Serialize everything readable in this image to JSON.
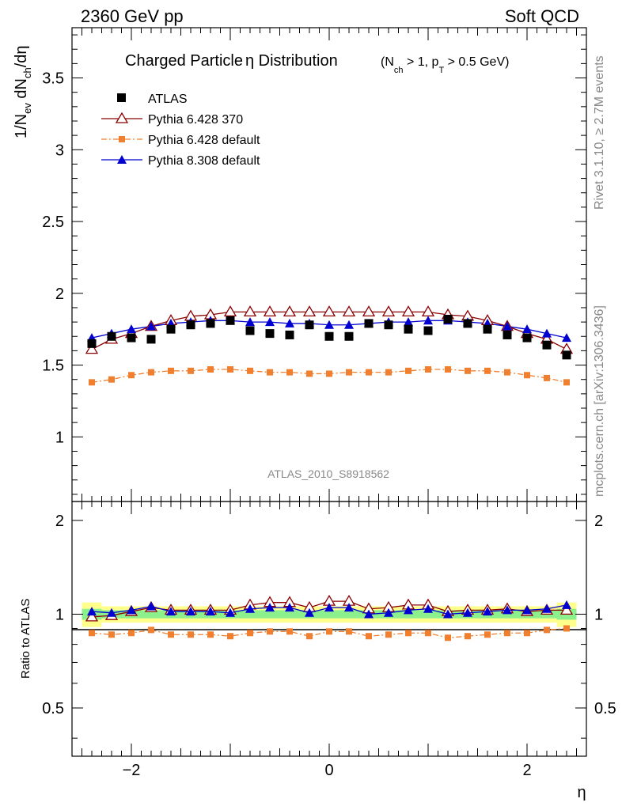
{
  "header": {
    "left": "2360 GeV pp",
    "right": "Soft QCD"
  },
  "side_labels": {
    "rivet": "Rivet 3.1.10, ≥ 2.7M events",
    "mcplots": "mcplots.cern.ch [arXiv:1306.3436]"
  },
  "watermark": "ATLAS_2010_S8918562",
  "chart_data": [
    {
      "type": "scatter",
      "title_main": "Charged Particle",
      "title_eta": "η",
      "title_rest": " Distribution",
      "title_cut": "(N",
      "title_cut_sub1": "ch",
      "title_cut_mid": " > 1, p",
      "title_cut_sub2": "T",
      "title_cut_end": " > 0.5 GeV)",
      "ylabel": {
        "a": "1/N",
        "a_sub": "ev",
        "b": " dN",
        "b_sub": "ch",
        "c": "/dη"
      },
      "xlim": [
        -2.6,
        2.6
      ],
      "ylim": [
        0.55,
        3.85
      ],
      "yticks": [
        "1",
        "1.5",
        "2",
        "2.5",
        "3",
        "3.5"
      ],
      "ytick_values": [
        1,
        1.5,
        2,
        2.5,
        3,
        3.5
      ],
      "legend_position": "top-left",
      "x": [
        -2.4,
        -2.2,
        -2.0,
        -1.8,
        -1.6,
        -1.4,
        -1.2,
        -1.0,
        -0.8,
        -0.6,
        -0.4,
        -0.2,
        0.0,
        0.2,
        0.4,
        0.6,
        0.8,
        1.0,
        1.2,
        1.4,
        1.6,
        1.8,
        2.0,
        2.2,
        2.4
      ],
      "series": [
        {
          "name": "ATLAS",
          "color": "#000000",
          "marker": "square-filled",
          "values": [
            1.65,
            1.7,
            1.69,
            1.68,
            1.75,
            1.78,
            1.79,
            1.81,
            1.74,
            1.72,
            1.71,
            1.78,
            1.7,
            1.7,
            1.79,
            1.78,
            1.75,
            1.74,
            1.82,
            1.79,
            1.75,
            1.71,
            1.69,
            1.64,
            1.57
          ]
        },
        {
          "name": "Pythia 6.428 370",
          "color": "#8b0000",
          "marker": "triangle-open",
          "line": "solid",
          "values": [
            1.61,
            1.68,
            1.72,
            1.77,
            1.81,
            1.84,
            1.85,
            1.87,
            1.87,
            1.87,
            1.87,
            1.87,
            1.87,
            1.87,
            1.87,
            1.87,
            1.87,
            1.87,
            1.85,
            1.84,
            1.81,
            1.77,
            1.72,
            1.68,
            1.61
          ]
        },
        {
          "name": "Pythia 6.428 default",
          "color": "#f08030",
          "marker": "square-small",
          "line": "dashdot",
          "values": [
            1.38,
            1.4,
            1.43,
            1.45,
            1.46,
            1.46,
            1.47,
            1.47,
            1.46,
            1.45,
            1.45,
            1.44,
            1.44,
            1.45,
            1.45,
            1.45,
            1.46,
            1.47,
            1.47,
            1.46,
            1.46,
            1.45,
            1.43,
            1.41,
            1.38
          ]
        },
        {
          "name": "Pythia 8.308 default",
          "color": "#0000d0",
          "marker": "triangle-filled",
          "line": "solid",
          "values": [
            1.69,
            1.72,
            1.75,
            1.77,
            1.79,
            1.8,
            1.81,
            1.81,
            1.8,
            1.8,
            1.79,
            1.79,
            1.78,
            1.78,
            1.79,
            1.8,
            1.8,
            1.81,
            1.81,
            1.8,
            1.79,
            1.77,
            1.75,
            1.72,
            1.69
          ]
        }
      ]
    },
    {
      "type": "scatter",
      "xlabel": "η",
      "ylabel": "Ratio to ATLAS",
      "xlim": [
        -2.6,
        2.6
      ],
      "ylim": [
        0.35,
        2.3
      ],
      "xticks": [
        "−2",
        "0",
        "2"
      ],
      "xtick_values": [
        -2,
        0,
        2
      ],
      "yticks": [
        "0.5",
        "1",
        "2"
      ],
      "ytick_values": [
        0.5,
        1,
        2
      ],
      "band_inner": [
        0.96,
        0.97,
        0.97,
        0.97,
        0.97,
        0.97,
        0.97,
        0.97,
        0.97,
        0.97,
        0.97,
        0.97,
        0.97,
        0.97,
        0.97,
        0.97,
        0.97,
        0.97,
        0.97,
        0.97,
        0.97,
        0.97,
        0.97,
        0.97,
        0.96
      ],
      "band_inner_hi": [
        1.04,
        1.03,
        1.03,
        1.03,
        1.03,
        1.03,
        1.03,
        1.03,
        1.03,
        1.03,
        1.03,
        1.03,
        1.03,
        1.03,
        1.03,
        1.03,
        1.03,
        1.03,
        1.03,
        1.03,
        1.03,
        1.03,
        1.03,
        1.03,
        1.04
      ],
      "band_outer": [
        0.91,
        0.94,
        0.94,
        0.94,
        0.94,
        0.94,
        0.94,
        0.94,
        0.94,
        0.94,
        0.94,
        0.94,
        0.94,
        0.94,
        0.94,
        0.94,
        0.94,
        0.94,
        0.94,
        0.94,
        0.94,
        0.94,
        0.94,
        0.94,
        0.91
      ],
      "band_outer_hi": [
        1.09,
        1.06,
        1.06,
        1.06,
        1.06,
        1.06,
        1.06,
        1.06,
        1.06,
        1.06,
        1.06,
        1.06,
        1.06,
        1.06,
        1.06,
        1.06,
        1.06,
        1.06,
        1.06,
        1.06,
        1.06,
        1.06,
        1.06,
        1.06,
        1.09
      ],
      "series": [
        {
          "name": "Pythia 6.428 370",
          "color": "#8b0000",
          "values": [
            0.98,
            0.99,
            1.02,
            1.05,
            1.03,
            1.03,
            1.03,
            1.03,
            1.07,
            1.09,
            1.09,
            1.05,
            1.1,
            1.1,
            1.04,
            1.05,
            1.07,
            1.07,
            1.02,
            1.03,
            1.03,
            1.04,
            1.02,
            1.03,
            1.03
          ]
        },
        {
          "name": "Pythia 6.428 default",
          "color": "#f08030",
          "values": [
            0.87,
            0.86,
            0.87,
            0.89,
            0.86,
            0.86,
            0.86,
            0.85,
            0.87,
            0.88,
            0.88,
            0.85,
            0.88,
            0.88,
            0.85,
            0.86,
            0.87,
            0.87,
            0.84,
            0.85,
            0.86,
            0.87,
            0.87,
            0.89,
            0.9
          ]
        },
        {
          "name": "Pythia 8.308 default",
          "color": "#0000d0",
          "values": [
            1.02,
            1.01,
            1.03,
            1.06,
            1.02,
            1.02,
            1.02,
            1.01,
            1.04,
            1.05,
            1.05,
            1.01,
            1.05,
            1.05,
            1.0,
            1.01,
            1.03,
            1.04,
            1.0,
            1.01,
            1.02,
            1.03,
            1.03,
            1.04,
            1.07
          ]
        }
      ]
    }
  ]
}
